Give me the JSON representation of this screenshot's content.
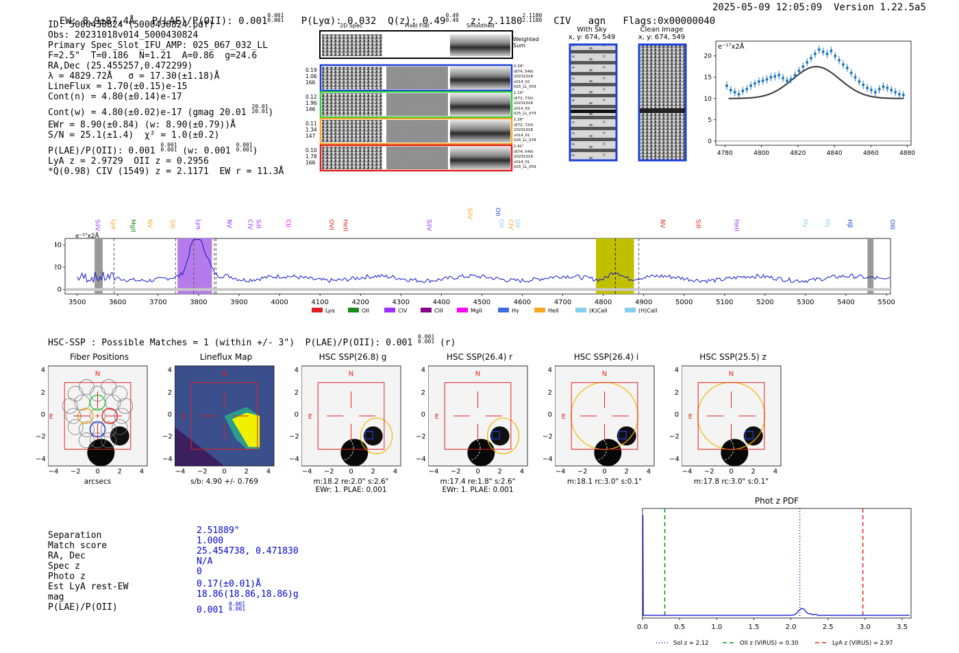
{
  "header": {
    "ew": "EW: 8.9±87.4Å",
    "plae_label": "P(LAE)/P(OII): 0.001",
    "plae_sup": "0.001",
    "plae_sub": "0.001",
    "plya": "P(Lyα): 0.032",
    "qz_label": "Q(z): 0.49",
    "qz_sup": "0.49",
    "qz_sub": "0.49",
    "z_label": "z: 2.1180",
    "z_sup": "2.1180",
    "z_sub": "2.1180",
    "line": "CIV",
    "cls": "agn",
    "flags": "Flags:0x00000040",
    "timestamp": "2025-05-09 12:05:09",
    "version": "Version 1.22.5a5"
  },
  "info": {
    "id": "ID: 5000430824 (5000430824.pdf)",
    "obs": "Obs: 20231018v014_5000430824",
    "spec": "Primary Spec_Slot_IFU_AMP: 025_067_032_LL",
    "fparams": "F=2.5\"  T=0.186  N=1.21  A=0.86  g=24.6",
    "radec": "RA,Dec (25.455257,0.472299)",
    "lambda": "λ = 4829.72Å   σ = 17.30(±1.18)Å",
    "lineflux": "LineFlux = 1.70(±0.15)e-15",
    "contn": "Cont(n) = 4.80(±0.14)e-17",
    "contw": "Cont(w) = 4.80(±0.02)e-17 (gmag 20.01",
    "contw_sup": "20.01",
    "contw_sub": "20.01",
    "ewr": "EWr = 8.90(±0.84) (w: 8.90(±0.79))Å",
    "sn": "S/N = 25.1(±1.4)  χ² = 1.0(±0.2)",
    "plae": "P(LAE)/P(OII): 0.001",
    "plae_sup": "0.001",
    "plae_sub": "0.001",
    "plae_w": "(w: 0.001",
    "plae_w_sup": "0.001",
    "plae_w_sub": "0.001",
    "lya_z": "LyA z = 2.9729  OII z = 0.2956",
    "civ": "*Q(0.98) CIV (1549) z = 2.1171  EW r = 11.3Å"
  },
  "cutouts": {
    "col_2d": "2D Spec",
    "col_flat": "Pixel Flat",
    "col_smooth": "Smoothed",
    "weighted": "Weighted\nSum",
    "rows": [
      {
        "vals": [
          "0.19",
          "1.06",
          "166"
        ],
        "meta": [
          "0.34\"",
          "(674, 549)",
          "20231018",
          "v014_02",
          "025_LL_059"
        ],
        "color": "#1f3fd6"
      },
      {
        "vals": [
          "0.12",
          "1.96",
          "146"
        ],
        "meta": [
          "1.19\"",
          "(672, 732)",
          "20231018",
          "v014_03",
          "025_LL_079"
        ],
        "color": "#2ecc40"
      },
      {
        "vals": [
          "0.11",
          "1.34",
          "147"
        ],
        "meta": [
          "1.26\"",
          "(672, 724)",
          "20231018",
          "v014_01",
          "025_LL_078"
        ],
        "color": "#f5a623"
      },
      {
        "vals": [
          "0.10",
          "1.78",
          "166"
        ],
        "meta": [
          "1.41\"",
          "(674, 549)",
          "20231018",
          "v014_01",
          "025_LL_059"
        ],
        "color": "#e02020"
      }
    ],
    "with_sky": "With Sky",
    "with_sky_xy": "x, y: 674, 549",
    "clean": "Clean Image",
    "clean_xy": "x, y: 674, 549"
  },
  "zoom_chart": {
    "unit": "e⁻¹⁷x2Å",
    "xticks": [
      "4780",
      "4800",
      "4820",
      "4840",
      "4860",
      "4880"
    ],
    "yticks": [
      "0",
      "5",
      "10",
      "15",
      "20"
    ]
  },
  "spectrum": {
    "unit": "e⁻¹⁷x2Å",
    "yticks": [
      "0",
      "20",
      "40"
    ],
    "xticks": [
      "3500",
      "3600",
      "3700",
      "3800",
      "3900",
      "4000",
      "4100",
      "4200",
      "4300",
      "4400",
      "4500",
      "4600",
      "4700",
      "4800",
      "4900",
      "5000",
      "5100",
      "5200",
      "5300",
      "5400",
      "5500"
    ],
    "top_labels": [
      {
        "t": "SiIV",
        "c": "#f5a623",
        "w": 4460
      },
      {
        "t": "OII",
        "c": "#1f3fd6",
        "w": 4530
      }
    ],
    "line_labels": [
      {
        "t": "SiIV",
        "c": "#9b30ff",
        "w": 3540
      },
      {
        "t": "Lyα",
        "c": "#f5a623",
        "w": 3580
      },
      {
        "t": "MgII",
        "c": "#1a8a1a",
        "w": 3628
      },
      {
        "t": "NV",
        "c": "#f5a623",
        "w": 3670
      },
      {
        "t": "SiII",
        "c": "#f5a623",
        "w": 3726
      },
      {
        "t": "Lyα",
        "c": "#9b30ff",
        "w": 3790
      },
      {
        "t": "NV",
        "c": "#9b30ff",
        "w": 3866
      },
      {
        "t": "CIV",
        "c": "#9b30ff",
        "w": 3918
      },
      {
        "t": "SiII",
        "c": "#9b30ff",
        "w": 3938
      },
      {
        "t": "CII",
        "c": "#ff00ff",
        "w": 4012
      },
      {
        "t": "OVI",
        "c": "#e02020",
        "w": 4118
      },
      {
        "t": "HeII",
        "c": "#e02020",
        "w": 4153
      },
      {
        "t": "SiIV",
        "c": "#9b30ff",
        "w": 4360
      },
      {
        "t": "OII",
        "c": "#87ceeb",
        "w": 4538
      },
      {
        "t": "CIV",
        "c": "#f5a623",
        "w": 4562
      },
      {
        "t": "OII",
        "c": "#87ceeb",
        "w": 4578
      },
      {
        "t": "NV",
        "c": "#e02020",
        "w": 4937
      },
      {
        "t": "SiII",
        "c": "#e02020",
        "w": 5025
      },
      {
        "t": "HeII",
        "c": "#9b30ff",
        "w": 5120
      },
      {
        "t": "Hγ",
        "c": "#87ceeb",
        "w": 5290
      },
      {
        "t": "Hγ",
        "c": "#87ceeb",
        "w": 5345
      },
      {
        "t": "Hβ",
        "c": "#1f3fd6",
        "w": 5400
      },
      {
        "t": "OIII",
        "c": "#1f3fd6",
        "w": 5505
      }
    ],
    "legend": [
      {
        "t": "Lyα",
        "c": "#e02020"
      },
      {
        "t": "OII",
        "c": "#1a8a1a"
      },
      {
        "t": "CIV",
        "c": "#9b30ff"
      },
      {
        "t": "CIII",
        "c": "#8b008b"
      },
      {
        "t": "MgII",
        "c": "#ff00ff"
      },
      {
        "t": "Hγ",
        "c": "#4169e1"
      },
      {
        "t": "HeII",
        "c": "#f5a623"
      },
      {
        "t": "(K)CaII",
        "c": "#87ceeb"
      },
      {
        "t": "(H)CaII",
        "c": "#87ceeb"
      }
    ]
  },
  "hsc_title": "HSC-SSP : Possible Matches = 1 (within +/- 3\")  P(LAE)/P(OII): 0.001",
  "hsc_title_sup": "0.001",
  "hsc_title_sub": "0.001",
  "hsc_title_tail": "(r)",
  "panels": [
    {
      "title": "Fiber Positions",
      "cap1": "arcsecs",
      "cap2": ""
    },
    {
      "title": "Lineflux Map",
      "cap1": "s/b: 4.90 +/- 0.769",
      "cap2": ""
    },
    {
      "title": "HSC SSP(26.8) g",
      "cap1": "m:18.2  re:2.0\"  s:2.6\"",
      "cap2": "EWr: 1. PLAE: 0.001"
    },
    {
      "title": "HSC SSP(26.4) r",
      "cap1": "m:17.4  re:1.8\"  s:2.6\"",
      "cap2": "EWr: 1. PLAE: 0.001"
    },
    {
      "title": "HSC SSP(26.4) i",
      "cap1": "m:18.1 rc:3.0\"  s:0.1\"",
      "cap2": ""
    },
    {
      "title": "HSC SSP(25.5) z",
      "cap1": "m:17.8 rc:3.0\"  s:0.1\"",
      "cap2": ""
    }
  ],
  "panel_ticks": [
    "4",
    "2",
    "0",
    "−2",
    "−4"
  ],
  "panel_xticks": [
    "−4",
    "−2",
    "0",
    "2",
    "4"
  ],
  "compass": {
    "n": "N",
    "e": "E"
  },
  "match": {
    "labels": [
      "Separation",
      "Match score",
      "RA, Dec",
      "Spec z",
      "Photo z",
      "Est LyA rest-EW",
      "mag",
      "P(LAE)/P(OII)"
    ],
    "values": [
      "2.51889\"",
      "1.000",
      "25.454738, 0.471830",
      "N/A",
      "0",
      "0.17(±0.01)Å",
      "18.86(18.86,18.86)g",
      "0.001"
    ],
    "plae_sup": "0.001",
    "plae_sub": "0.001"
  },
  "photz": {
    "title": "Phot z PDF",
    "xticks": [
      "0.0",
      "0.5",
      "1.0",
      "1.5",
      "2.0",
      "2.5",
      "3.0",
      "3.5"
    ],
    "legend": [
      {
        "t": "Sol z = 2.12",
        "c": "#0000cc",
        "dash": "1,3",
        "z": 2.12
      },
      {
        "t": "OII z (VIRUS) = 0.30",
        "c": "#1a8a1a",
        "dash": "6,4",
        "z": 0.3
      },
      {
        "t": "LyA z (VIRUS) = 2.97",
        "c": "#e02020",
        "dash": "6,4",
        "z": 2.97
      }
    ]
  }
}
